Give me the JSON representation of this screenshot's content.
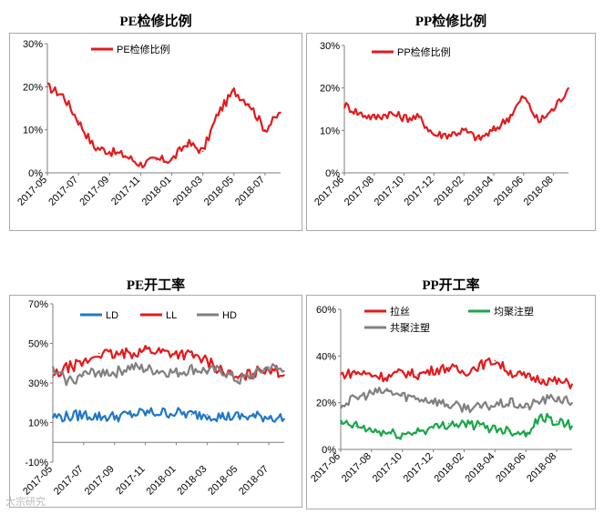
{
  "watermark": "大宗研究",
  "chart_data": [
    {
      "type": "line",
      "title": "PE检修比例",
      "ylim": [
        0,
        30
      ],
      "ytick_labels": [
        "0%",
        "10%",
        "20%",
        "30%"
      ],
      "x_start": "2017-05",
      "x_end": "2018-08",
      "xtick_labels": [
        "2017-05",
        "2017-07",
        "2017-09",
        "2017-11",
        "2018-01",
        "2018-03",
        "2018-05",
        "2018-07"
      ],
      "legend": "top-left",
      "series": [
        {
          "name": "PE检修比例",
          "color": "#e31a1c",
          "x": [
            "2017-05",
            "2017-06",
            "2017-07",
            "2017-08",
            "2017-09",
            "2017-10",
            "2017-11",
            "2017-12",
            "2018-01",
            "2018-02",
            "2018-03",
            "2018-04",
            "2018-05",
            "2018-06",
            "2018-07",
            "2018-08"
          ],
          "values": [
            20,
            18,
            12,
            6,
            5,
            4,
            2,
            3,
            3,
            7,
            5,
            14,
            19,
            16,
            10,
            14
          ]
        }
      ]
    },
    {
      "type": "line",
      "title": "PP检修比例",
      "ylim": [
        0,
        30
      ],
      "ytick_labels": [
        "0%",
        "10%",
        "20%",
        "30%"
      ],
      "x_start": "2017-06",
      "x_end": "2018-09",
      "xtick_labels": [
        "2017-06",
        "2017-08",
        "2017-10",
        "2017-12",
        "2018-02",
        "2018-04",
        "2018-06",
        "2018-08"
      ],
      "legend": "top-left",
      "series": [
        {
          "name": "PP检修比例",
          "color": "#e31a1c",
          "x": [
            "2017-06",
            "2017-07",
            "2017-08",
            "2017-09",
            "2017-10",
            "2017-11",
            "2017-12",
            "2018-01",
            "2018-02",
            "2018-03",
            "2018-04",
            "2018-05",
            "2018-06",
            "2018-07",
            "2018-08",
            "2018-09"
          ],
          "values": [
            16,
            14,
            13,
            14,
            13,
            13,
            9,
            9,
            10,
            8,
            10,
            13,
            18,
            12,
            15,
            20
          ]
        }
      ]
    },
    {
      "type": "line",
      "title": "PE开工率",
      "ylim": [
        -10,
        70
      ],
      "ytick_labels": [
        "-10%",
        "10%",
        "30%",
        "50%",
        "70%"
      ],
      "x_start": "2017-05",
      "x_end": "2018-08",
      "xtick_labels": [
        "2017-05",
        "2017-07",
        "2017-09",
        "2017-11",
        "2018-01",
        "2018-03",
        "2018-05",
        "2018-07"
      ],
      "legend": "top",
      "series": [
        {
          "name": "LD",
          "color": "#1f77c8",
          "x": [
            "2017-05",
            "2017-06",
            "2017-07",
            "2017-08",
            "2017-09",
            "2017-10",
            "2017-11",
            "2017-12",
            "2018-01",
            "2018-02",
            "2018-03",
            "2018-04",
            "2018-05",
            "2018-06",
            "2018-07",
            "2018-08"
          ],
          "values": [
            13,
            13,
            14,
            13,
            13,
            14,
            15,
            15,
            15,
            14,
            14,
            13,
            13,
            13,
            13,
            12
          ]
        },
        {
          "name": "LL",
          "color": "#e31a1c",
          "x": [
            "2017-05",
            "2017-06",
            "2017-07",
            "2017-08",
            "2017-09",
            "2017-10",
            "2017-11",
            "2017-12",
            "2018-01",
            "2018-02",
            "2018-03",
            "2018-04",
            "2018-05",
            "2018-06",
            "2018-07",
            "2018-08"
          ],
          "values": [
            33,
            38,
            40,
            45,
            44,
            45,
            47,
            46,
            45,
            44,
            41,
            36,
            32,
            35,
            38,
            34
          ]
        },
        {
          "name": "HD",
          "color": "#808080",
          "x": [
            "2017-05",
            "2017-06",
            "2017-07",
            "2017-08",
            "2017-09",
            "2017-10",
            "2017-11",
            "2017-12",
            "2018-01",
            "2018-02",
            "2018-03",
            "2018-04",
            "2018-05",
            "2018-06",
            "2018-07",
            "2018-08"
          ],
          "values": [
            36,
            31,
            34,
            36,
            35,
            38,
            37,
            36,
            35,
            37,
            36,
            36,
            31,
            34,
            38,
            36
          ]
        }
      ]
    },
    {
      "type": "line",
      "title": "PP开工率",
      "ylim": [
        0,
        60
      ],
      "ytick_labels": [
        "0%",
        "20%",
        "40%",
        "60%"
      ],
      "x_start": "2017-06",
      "x_end": "2018-09",
      "xtick_labels": [
        "2017-06",
        "2017-08",
        "2017-10",
        "2017-12",
        "2018-02",
        "2018-04",
        "2018-06",
        "2018-08"
      ],
      "legend": "top",
      "series": [
        {
          "name": "拉丝",
          "color": "#e31a1c",
          "x": [
            "2017-06",
            "2017-07",
            "2017-08",
            "2017-09",
            "2017-10",
            "2017-11",
            "2017-12",
            "2018-01",
            "2018-02",
            "2018-03",
            "2018-04",
            "2018-05",
            "2018-06",
            "2018-07",
            "2018-08",
            "2018-09"
          ],
          "values": [
            32,
            33,
            32,
            31,
            33,
            32,
            34,
            35,
            33,
            36,
            38,
            33,
            31,
            30,
            29,
            28
          ]
        },
        {
          "name": "均聚注塑",
          "color": "#1aa64a",
          "x": [
            "2017-06",
            "2017-07",
            "2017-08",
            "2017-09",
            "2017-10",
            "2017-11",
            "2017-12",
            "2018-01",
            "2018-02",
            "2018-03",
            "2018-04",
            "2018-05",
            "2018-06",
            "2018-07",
            "2018-08",
            "2018-09"
          ],
          "values": [
            11,
            10,
            8,
            7,
            6,
            8,
            9,
            11,
            11,
            10,
            9,
            8,
            7,
            14,
            12,
            10
          ]
        },
        {
          "name": "共聚注塑",
          "color": "#808080",
          "x": [
            "2017-06",
            "2017-07",
            "2017-08",
            "2017-09",
            "2017-10",
            "2017-11",
            "2017-12",
            "2018-01",
            "2018-02",
            "2018-03",
            "2018-04",
            "2018-05",
            "2018-06",
            "2018-07",
            "2018-08",
            "2018-09"
          ],
          "values": [
            19,
            22,
            24,
            25,
            23,
            22,
            21,
            19,
            18,
            18,
            19,
            20,
            18,
            21,
            22,
            20
          ]
        }
      ]
    }
  ]
}
